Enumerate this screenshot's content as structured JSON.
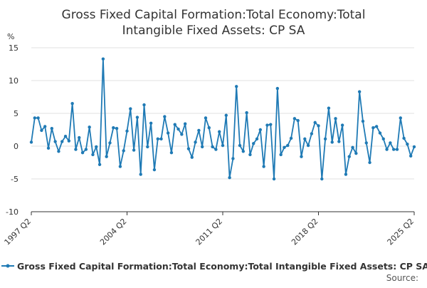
{
  "chart_data": {
    "type": "line",
    "title_lines": [
      "Gross Fixed Capital Formation:Total Economy:Total",
      "Intangible Fixed Assets: CP SA"
    ],
    "ylabel": "%",
    "ylim": [
      -10,
      15
    ],
    "yticks": [
      15,
      10,
      5,
      0,
      -5,
      -10
    ],
    "xtick_labels": [
      "1997 Q2",
      "2004 Q2",
      "2011 Q2",
      "2018 Q2",
      "2025 Q2"
    ],
    "xtick_positions": [
      0,
      28,
      56,
      84,
      112
    ],
    "grid": true,
    "legend_position": "bottom",
    "source_label": "Source:",
    "colors": {
      "series": "#1f7ab5",
      "grid": "#e0e0e0",
      "axis": "#333333"
    },
    "series": [
      {
        "name": "Gross Fixed Capital Formation:Total Economy:Total Intangible Fixed Assets: CP SA",
        "values": [
          0.6,
          4.3,
          4.3,
          2.4,
          3.0,
          -0.3,
          2.7,
          0.7,
          -0.8,
          0.7,
          1.5,
          0.8,
          6.5,
          -0.5,
          1.3,
          -1.0,
          -0.5,
          2.9,
          -1.3,
          -0.1,
          -2.8,
          13.3,
          -1.6,
          0.5,
          2.8,
          2.7,
          -3.1,
          -0.7,
          2.3,
          5.7,
          -0.6,
          4.4,
          -4.3,
          6.3,
          -0.1,
          3.5,
          -3.6,
          1.1,
          1.1,
          4.5,
          2.0,
          -1.0,
          3.3,
          2.6,
          1.8,
          3.4,
          -0.4,
          -1.7,
          0.6,
          2.4,
          -0.1,
          4.3,
          2.8,
          -0.1,
          -0.5,
          2.2,
          0.1,
          4.7,
          -4.8,
          -1.9,
          9.1,
          0.1,
          -0.8,
          5.1,
          -1.3,
          0.4,
          1.1,
          2.5,
          -3.1,
          3.2,
          3.3,
          -5.0,
          8.8,
          -1.3,
          -0.2,
          0.1,
          1.2,
          4.2,
          3.9,
          -1.6,
          1.1,
          0.1,
          1.9,
          3.6,
          3.1,
          -5.0,
          1.1,
          5.8,
          0.6,
          4.2,
          0.7,
          3.2,
          -4.3,
          -1.6,
          -0.2,
          -1.1,
          8.3,
          3.8,
          0.5,
          -2.5,
          2.8,
          3.0,
          2.0,
          1.1,
          -0.5,
          0.5,
          -0.5,
          -0.5,
          4.3,
          1.2,
          0.3,
          -1.5,
          -0.1
        ]
      }
    ]
  }
}
